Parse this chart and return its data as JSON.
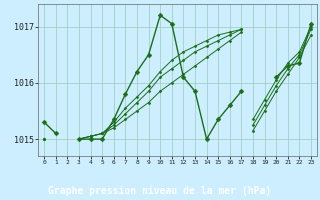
{
  "title": "Graphe pression niveau de la mer (hPa)",
  "bg_color": "#cceeff",
  "grid_color": "#99ccbb",
  "line_color": "#1a6e1a",
  "marker_color": "#1a6e1a",
  "label_bg": "#1a6e1a",
  "label_fg": "#ffffff",
  "hours": [
    0,
    1,
    2,
    3,
    4,
    5,
    6,
    7,
    8,
    9,
    10,
    11,
    12,
    13,
    14,
    15,
    16,
    17,
    18,
    19,
    20,
    21,
    22,
    23
  ],
  "s_main": [
    1015.3,
    1015.1,
    null,
    1015.0,
    1015.0,
    1015.0,
    1015.35,
    1015.8,
    1016.2,
    1016.5,
    1017.2,
    1017.05,
    1016.1,
    1015.85,
    1015.0,
    1015.35,
    1015.6,
    1015.85,
    null,
    null,
    1016.1,
    1016.3,
    1016.35,
    1017.05
  ],
  "s_trend1": [
    1015.0,
    null,
    null,
    1015.0,
    1015.05,
    1015.1,
    1015.2,
    1015.35,
    1015.5,
    1015.65,
    1015.85,
    1016.0,
    1016.15,
    1016.3,
    1016.45,
    1016.6,
    1016.75,
    1016.9,
    null,
    null,
    null,
    null,
    null,
    null
  ],
  "s_trend2": [
    1015.0,
    null,
    null,
    1015.0,
    1015.05,
    1015.1,
    1015.25,
    1015.45,
    1015.65,
    1015.85,
    1016.1,
    1016.25,
    1016.4,
    1016.55,
    1016.65,
    1016.75,
    1016.85,
    1016.95,
    null,
    null,
    null,
    null,
    null,
    null
  ],
  "s_trend3": [
    1015.0,
    null,
    null,
    1015.0,
    1015.05,
    1015.1,
    1015.3,
    1015.55,
    1015.75,
    1015.95,
    1016.2,
    1016.4,
    1016.55,
    1016.65,
    1016.75,
    1016.85,
    1016.9,
    1016.95,
    null,
    null,
    null,
    null,
    null,
    null
  ],
  "s_rise": [
    null,
    null,
    null,
    null,
    null,
    null,
    null,
    null,
    null,
    null,
    null,
    null,
    null,
    null,
    null,
    null,
    null,
    null,
    1015.15,
    1015.5,
    1015.85,
    1016.15,
    1016.45,
    1016.85
  ],
  "s_rise2": [
    null,
    null,
    null,
    null,
    null,
    null,
    null,
    null,
    null,
    null,
    null,
    null,
    null,
    null,
    null,
    null,
    null,
    null,
    1015.25,
    1015.6,
    1015.95,
    1016.25,
    1016.5,
    1016.95
  ],
  "s_rise3": [
    null,
    null,
    null,
    null,
    null,
    null,
    null,
    null,
    null,
    null,
    null,
    null,
    null,
    null,
    null,
    null,
    null,
    null,
    1015.35,
    1015.7,
    1016.05,
    1016.35,
    1016.55,
    1017.0
  ],
  "ylim": [
    1014.7,
    1017.4
  ],
  "yticks": [
    1015,
    1016,
    1017
  ]
}
